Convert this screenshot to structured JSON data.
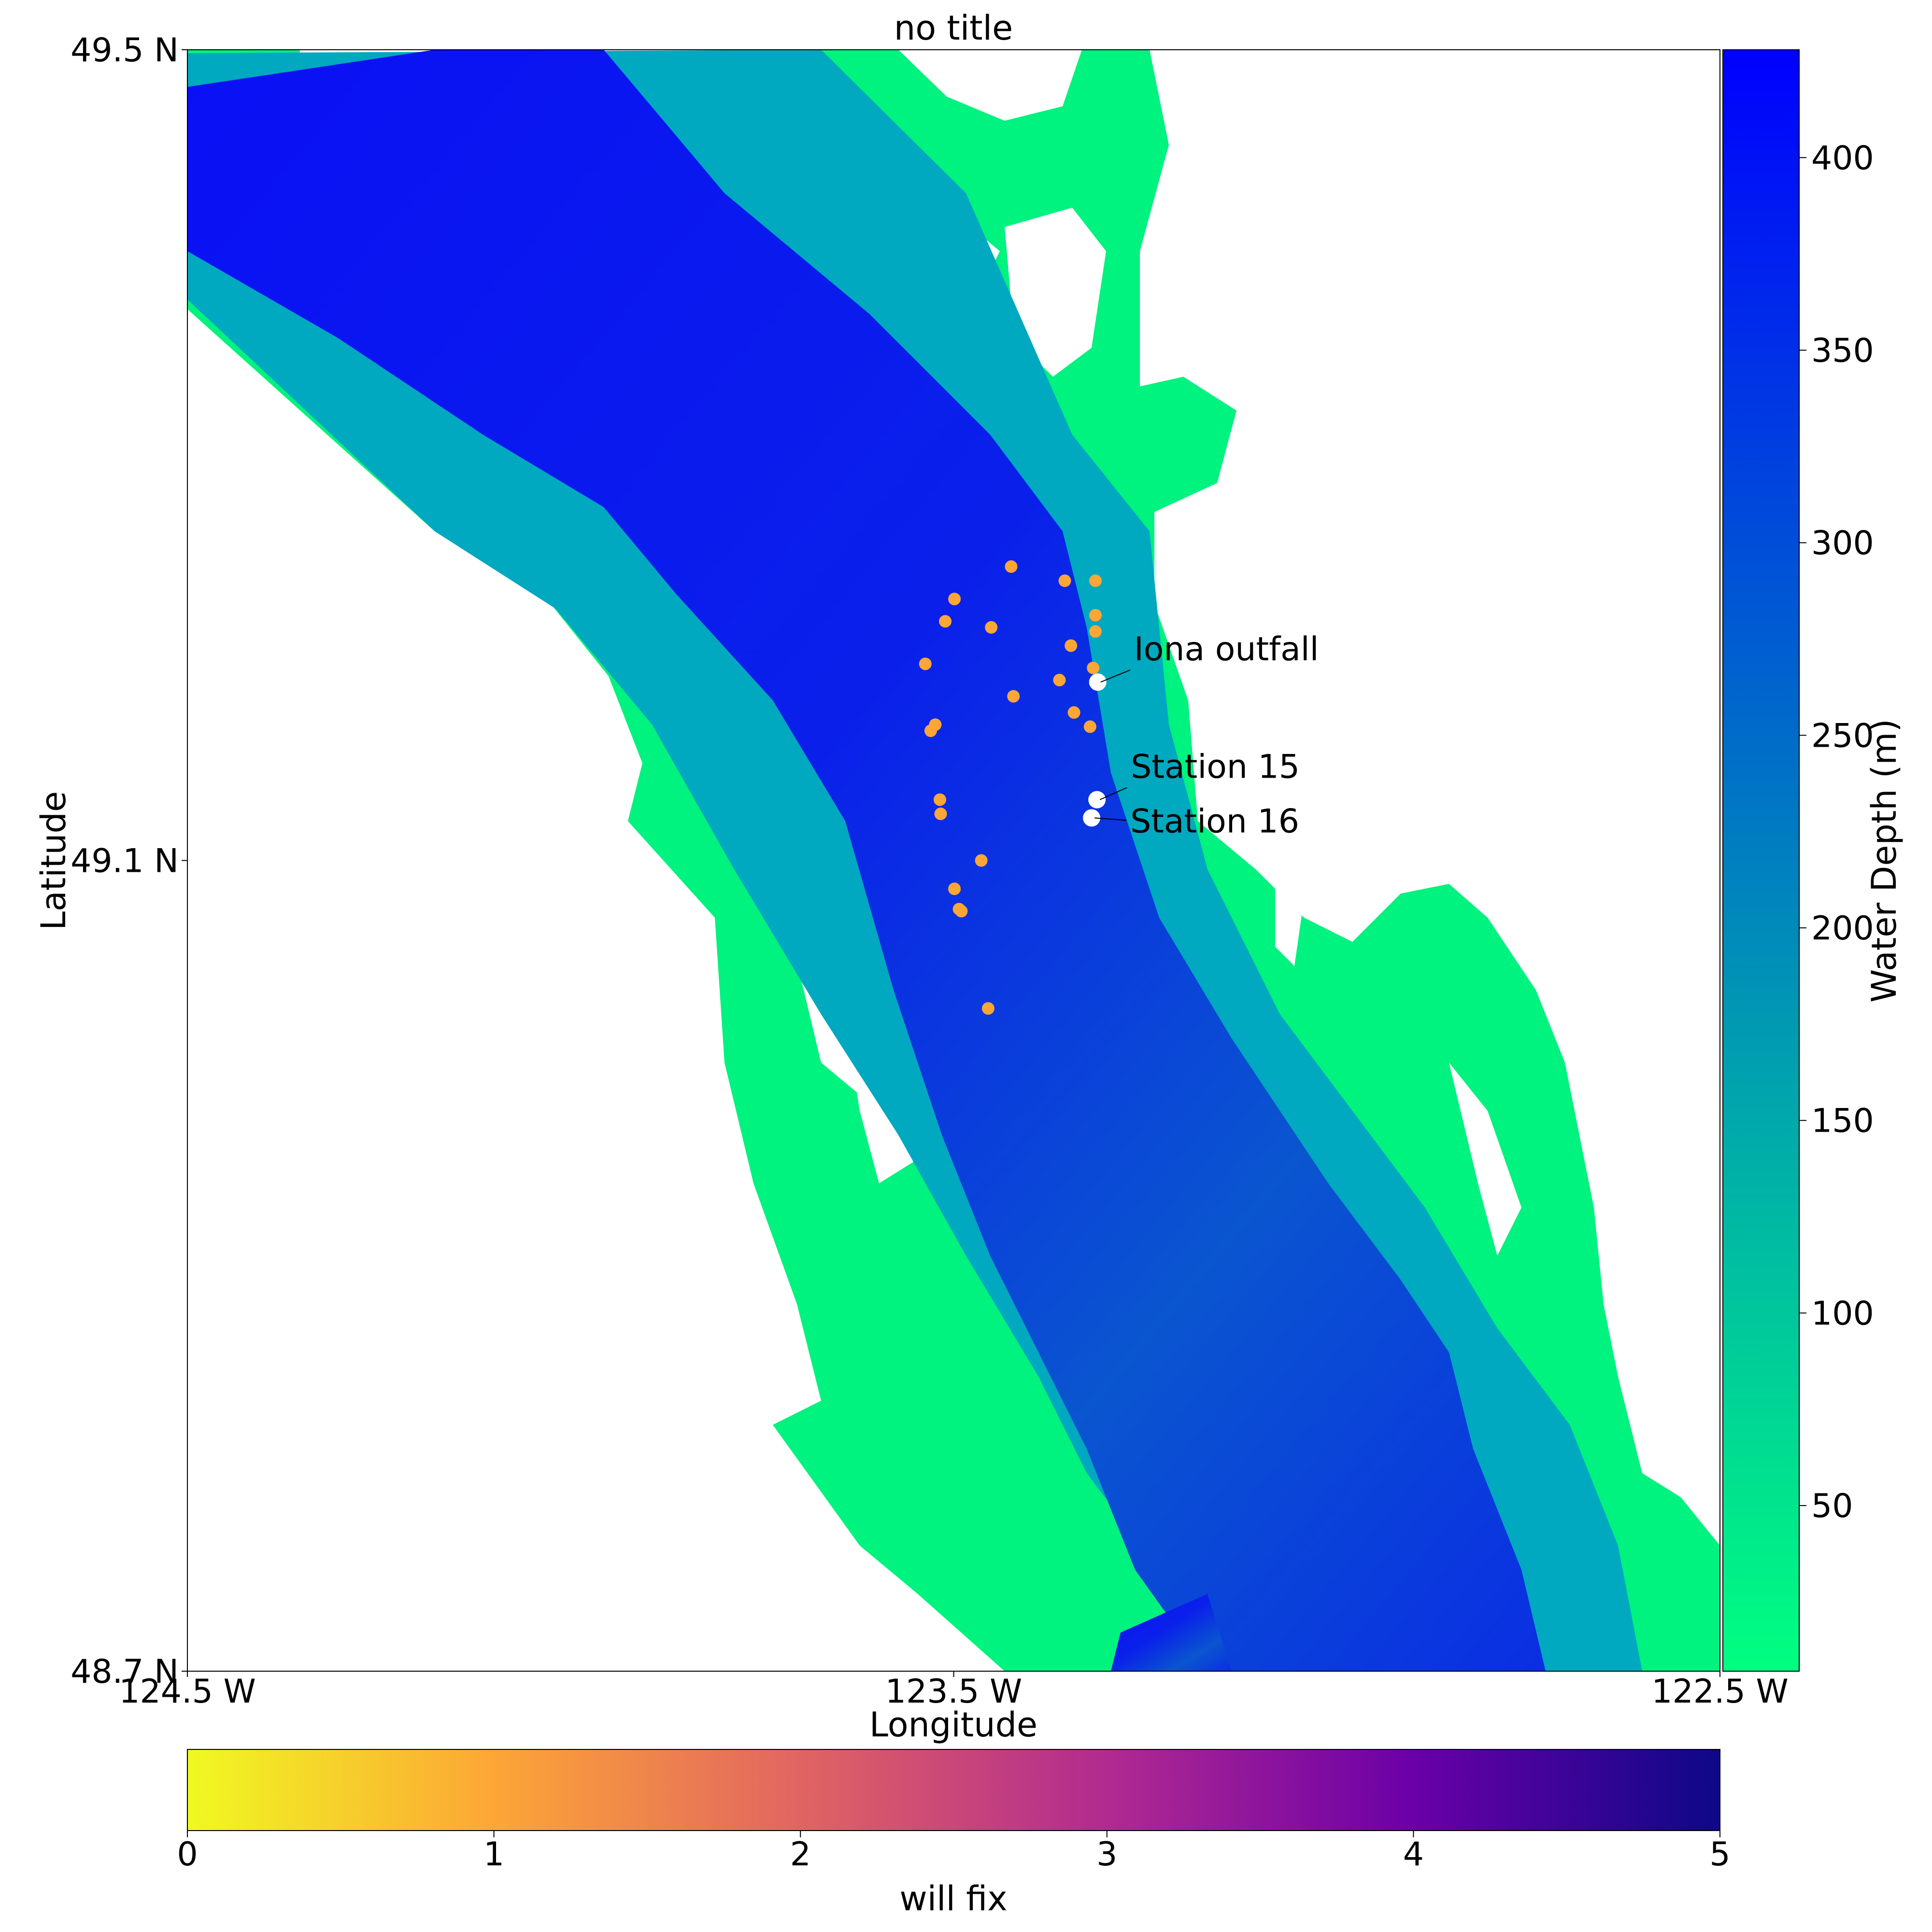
{
  "chart_data": [
    {
      "type": "scatter",
      "title": "no title",
      "xlabel": "Longitude",
      "ylabel": "Latitude",
      "xlim": [
        -124.5,
        -122.5
      ],
      "ylim": [
        48.7,
        49.5
      ],
      "xticks": [
        {
          "value": -124.5,
          "label": "124.5 W"
        },
        {
          "value": -123.5,
          "label": "123.5 W"
        },
        {
          "value": -122.5,
          "label": "122.5 W"
        }
      ],
      "yticks": [
        {
          "value": 49.5,
          "label": "49.5 N"
        },
        {
          "value": 49.1,
          "label": "49.1 N"
        },
        {
          "value": 48.7,
          "label": "48.7 N"
        }
      ],
      "background_field": {
        "variable": "water depth",
        "colormap": "winter_r",
        "units": "m"
      },
      "points": [
        {
          "lon": -123.425,
          "lat": 49.245,
          "value": 1.0
        },
        {
          "lon": -123.499,
          "lat": 49.229,
          "value": 1.0
        },
        {
          "lon": -123.355,
          "lat": 49.238,
          "value": 1.0
        },
        {
          "lon": -123.315,
          "lat": 49.238,
          "value": 1.0
        },
        {
          "lon": -123.511,
          "lat": 49.218,
          "value": 1.0
        },
        {
          "lon": -123.315,
          "lat": 49.221,
          "value": 1.0
        },
        {
          "lon": -123.315,
          "lat": 49.213,
          "value": 1.0
        },
        {
          "lon": -123.451,
          "lat": 49.215,
          "value": 1.0
        },
        {
          "lon": -123.347,
          "lat": 49.206,
          "value": 1.0
        },
        {
          "lon": -123.318,
          "lat": 49.195,
          "value": 1.0
        },
        {
          "lon": -123.537,
          "lat": 49.197,
          "value": 1.0
        },
        {
          "lon": -123.362,
          "lat": 49.189,
          "value": 1.0
        },
        {
          "lon": -123.422,
          "lat": 49.181,
          "value": 1.0
        },
        {
          "lon": -123.343,
          "lat": 49.173,
          "value": 1.0
        },
        {
          "lon": -123.524,
          "lat": 49.167,
          "value": 1.0
        },
        {
          "lon": -123.53,
          "lat": 49.164,
          "value": 1.0
        },
        {
          "lon": -123.322,
          "lat": 49.166,
          "value": 1.0
        },
        {
          "lon": -123.518,
          "lat": 49.13,
          "value": 1.0
        },
        {
          "lon": -123.517,
          "lat": 49.123,
          "value": 1.0
        },
        {
          "lon": -123.464,
          "lat": 49.1,
          "value": 1.0
        },
        {
          "lon": -123.499,
          "lat": 49.086,
          "value": 1.0
        },
        {
          "lon": -123.493,
          "lat": 49.076,
          "value": 1.0
        },
        {
          "lon": -123.49,
          "lat": 49.075,
          "value": 1.0
        },
        {
          "lon": -123.455,
          "lat": 49.027,
          "value": 1.0
        }
      ],
      "stations": [
        {
          "name": "Iona outfall",
          "lon": -123.312,
          "lat": 49.188
        },
        {
          "name": "Station 15",
          "lon": -123.313,
          "lat": 49.13
        },
        {
          "name": "Station 16",
          "lon": -123.32,
          "lat": 49.121
        }
      ]
    },
    {
      "type": "heatmap",
      "colorbar": "vertical",
      "label": "Water Depth (m)",
      "colormap": "winter_r",
      "range": [
        7,
        428
      ],
      "ticks": [
        "50",
        "100",
        "150",
        "200",
        "250",
        "300",
        "350",
        "400"
      ],
      "tick_values": [
        50,
        100,
        150,
        200,
        250,
        300,
        350,
        400
      ]
    },
    {
      "type": "heatmap",
      "colorbar": "horizontal",
      "label": "will fix",
      "colormap": "plasma_r",
      "range": [
        0,
        5
      ],
      "ticks": [
        "0",
        "1",
        "2",
        "3",
        "4",
        "5"
      ],
      "tick_values": [
        0,
        1,
        2,
        3,
        4,
        5
      ]
    }
  ],
  "colors": {
    "shallow": "#00ff80",
    "deep": "#0000ff",
    "station_marker": "#ffffff",
    "point_marker": "#fca636"
  }
}
